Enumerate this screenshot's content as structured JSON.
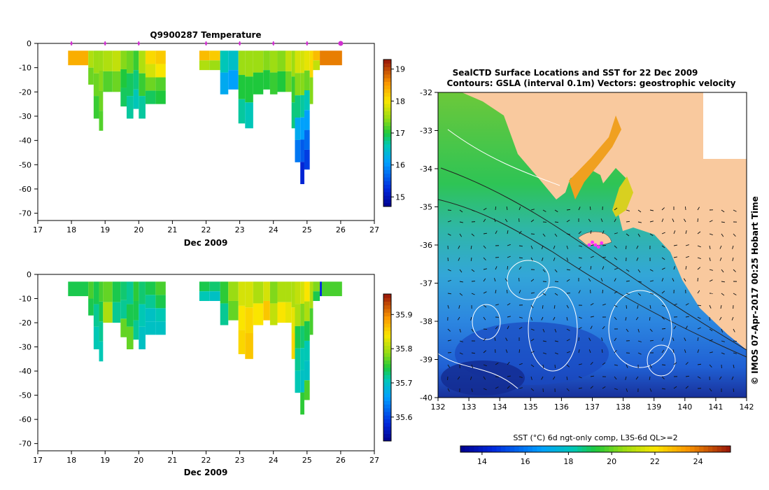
{
  "chart_data": [
    {
      "type": "heatmap",
      "title": "Q9900287  Temperature",
      "xlabel": "Dec 2009",
      "ylabel": "",
      "xlim": [
        17,
        27
      ],
      "ylim": [
        -73,
        0
      ],
      "x_ticks": [
        "17",
        "18",
        "19",
        "20",
        "21",
        "22",
        "23",
        "24",
        "25",
        "26",
        "27"
      ],
      "y_ticks": [
        "0",
        "-10",
        "-20",
        "-30",
        "-40",
        "-50",
        "-60",
        "-70"
      ],
      "y_tick_values": [
        0,
        -10,
        -20,
        -30,
        -40,
        -50,
        -60,
        -70
      ],
      "markers_x": [
        18,
        19,
        20,
        22,
        23,
        24,
        25,
        26
      ],
      "colorbar": {
        "min": 14.7,
        "max": 19.3,
        "ticks": [
          15,
          16,
          17,
          18,
          19
        ],
        "tick_labels": [
          "15",
          "16",
          "17",
          "18",
          "19"
        ]
      },
      "profiles": [
        {
          "x": 17.9,
          "w": 0.6,
          "depth": 9,
          "values": [
            18.4
          ]
        },
        {
          "x": 18.5,
          "w": 0.16,
          "depth": 17,
          "values": [
            17.6,
            17.3
          ]
        },
        {
          "x": 18.66,
          "w": 0.16,
          "depth": 31,
          "values": [
            17.5,
            17.3,
            17.1
          ]
        },
        {
          "x": 18.82,
          "w": 0.12,
          "depth": 36,
          "values": [
            17.5,
            17.4,
            17.3,
            17.2
          ]
        },
        {
          "x": 18.94,
          "w": 0.28,
          "depth": 20,
          "values": [
            17.6,
            17.2
          ]
        },
        {
          "x": 19.22,
          "w": 0.24,
          "depth": 20,
          "values": [
            17.7,
            17.3
          ]
        },
        {
          "x": 19.46,
          "w": 0.18,
          "depth": 26,
          "values": [
            17.4,
            17.0,
            16.9
          ]
        },
        {
          "x": 19.64,
          "w": 0.2,
          "depth": 31,
          "values": [
            17.3,
            16.9,
            16.7
          ]
        },
        {
          "x": 19.84,
          "w": 0.16,
          "depth": 27,
          "values": [
            17.1,
            16.8,
            16.6
          ]
        },
        {
          "x": 20.0,
          "w": 0.2,
          "depth": 31,
          "values": [
            17.6,
            17.1,
            16.7
          ]
        },
        {
          "x": 20.2,
          "w": 0.3,
          "depth": 25,
          "values": [
            18.1,
            17.8,
            17.3,
            16.9
          ]
        },
        {
          "x": 20.5,
          "w": 0.3,
          "depth": 25,
          "values": [
            18.2,
            18.0,
            17.2,
            17.0
          ]
        },
        {
          "x": 21.8,
          "w": 0.3,
          "depth": 11,
          "values": [
            18.3,
            17.6
          ]
        },
        {
          "x": 22.1,
          "w": 0.32,
          "depth": 11,
          "values": [
            18.2,
            17.5
          ]
        },
        {
          "x": 22.42,
          "w": 0.24,
          "depth": 21,
          "values": [
            16.6,
            16.2
          ]
        },
        {
          "x": 22.66,
          "w": 0.3,
          "depth": 19,
          "values": [
            16.5,
            16.1
          ]
        },
        {
          "x": 22.96,
          "w": 0.2,
          "depth": 33,
          "values": [
            17.5,
            17.0,
            16.7
          ]
        },
        {
          "x": 23.16,
          "w": 0.24,
          "depth": 35,
          "values": [
            17.5,
            17.0,
            16.6
          ]
        },
        {
          "x": 23.4,
          "w": 0.3,
          "depth": 21,
          "values": [
            17.5,
            17.0
          ]
        },
        {
          "x": 23.7,
          "w": 0.2,
          "depth": 19,
          "values": [
            17.4,
            17.0
          ]
        },
        {
          "x": 23.9,
          "w": 0.22,
          "depth": 21,
          "values": [
            17.5,
            17.1
          ]
        },
        {
          "x": 24.12,
          "w": 0.24,
          "depth": 20,
          "values": [
            17.4,
            17.0
          ]
        },
        {
          "x": 24.36,
          "w": 0.18,
          "depth": 20,
          "values": [
            17.7,
            17.3
          ]
        },
        {
          "x": 24.54,
          "w": 0.1,
          "depth": 35,
          "values": [
            17.5,
            17.1,
            16.8
          ]
        },
        {
          "x": 24.64,
          "w": 0.16,
          "depth": 49,
          "values": [
            17.8,
            17.4,
            16.8,
            16.2,
            15.8
          ]
        },
        {
          "x": 24.8,
          "w": 0.12,
          "depth": 58,
          "values": [
            17.8,
            17.4,
            16.7,
            16.1,
            15.6,
            15.2
          ]
        },
        {
          "x": 24.92,
          "w": 0.16,
          "depth": 52,
          "values": [
            17.9,
            17.3,
            16.6,
            16.1,
            15.7,
            15.4
          ]
        },
        {
          "x": 25.08,
          "w": 0.1,
          "depth": 25,
          "values": [
            18.1,
            17.4
          ]
        },
        {
          "x": 25.18,
          "w": 0.2,
          "depth": 11,
          "values": [
            18.3,
            17.7
          ]
        },
        {
          "x": 25.38,
          "w": 0.66,
          "depth": 9,
          "values": [
            18.7
          ]
        }
      ]
    },
    {
      "type": "heatmap",
      "title": "",
      "xlabel": "Dec 2009",
      "ylabel": "",
      "xlim": [
        17,
        27
      ],
      "ylim": [
        -73,
        0
      ],
      "x_ticks": [
        "17",
        "18",
        "19",
        "20",
        "21",
        "22",
        "23",
        "24",
        "25",
        "26",
        "27"
      ],
      "y_ticks": [
        "0",
        "-10",
        "-20",
        "-30",
        "-40",
        "-50",
        "-60",
        "-70"
      ],
      "y_tick_values": [
        0,
        -10,
        -20,
        -30,
        -40,
        -50,
        -60,
        -70
      ],
      "colorbar": {
        "min": 35.53,
        "max": 35.96,
        "ticks": [
          35.6,
          35.7,
          35.8,
          35.9
        ],
        "tick_labels": [
          "35.6",
          "35.7",
          "35.8",
          "35.9"
        ]
      },
      "profiles": [
        {
          "x": 17.9,
          "w": 0.6,
          "depth": 9,
          "values": [
            35.74
          ]
        },
        {
          "x": 18.5,
          "w": 0.16,
          "depth": 17,
          "values": [
            35.76,
            35.74
          ]
        },
        {
          "x": 18.66,
          "w": 0.16,
          "depth": 31,
          "values": [
            35.74,
            35.72,
            35.71
          ]
        },
        {
          "x": 18.82,
          "w": 0.12,
          "depth": 36,
          "values": [
            35.76,
            35.74,
            35.72,
            35.71
          ]
        },
        {
          "x": 18.94,
          "w": 0.28,
          "depth": 20,
          "values": [
            35.77,
            35.8
          ]
        },
        {
          "x": 19.22,
          "w": 0.24,
          "depth": 20,
          "values": [
            35.74,
            35.72
          ]
        },
        {
          "x": 19.46,
          "w": 0.18,
          "depth": 26,
          "values": [
            35.73,
            35.72,
            35.77
          ]
        },
        {
          "x": 19.64,
          "w": 0.2,
          "depth": 31,
          "values": [
            35.72,
            35.74,
            35.77
          ]
        },
        {
          "x": 19.84,
          "w": 0.16,
          "depth": 27,
          "values": [
            35.75,
            35.74,
            35.72
          ]
        },
        {
          "x": 20.0,
          "w": 0.2,
          "depth": 31,
          "values": [
            35.73,
            35.71,
            35.7
          ]
        },
        {
          "x": 20.2,
          "w": 0.3,
          "depth": 25,
          "values": [
            35.74,
            35.72,
            35.7,
            35.7
          ]
        },
        {
          "x": 20.5,
          "w": 0.3,
          "depth": 25,
          "values": [
            35.76,
            35.74,
            35.71,
            35.7
          ]
        },
        {
          "x": 21.8,
          "w": 0.3,
          "depth": 11,
          "values": [
            35.74,
            35.71
          ]
        },
        {
          "x": 22.1,
          "w": 0.32,
          "depth": 11,
          "values": [
            35.73,
            35.7
          ]
        },
        {
          "x": 22.42,
          "w": 0.24,
          "depth": 21,
          "values": [
            35.75,
            35.72
          ]
        },
        {
          "x": 22.66,
          "w": 0.3,
          "depth": 19,
          "values": [
            35.79,
            35.77
          ]
        },
        {
          "x": 22.96,
          "w": 0.2,
          "depth": 33,
          "values": [
            35.82,
            35.84,
            35.85
          ]
        },
        {
          "x": 23.16,
          "w": 0.24,
          "depth": 35,
          "values": [
            35.82,
            35.85,
            35.86
          ]
        },
        {
          "x": 23.4,
          "w": 0.3,
          "depth": 21,
          "values": [
            35.8,
            35.84
          ]
        },
        {
          "x": 23.7,
          "w": 0.2,
          "depth": 19,
          "values": [
            35.82,
            35.86
          ]
        },
        {
          "x": 23.9,
          "w": 0.22,
          "depth": 21,
          "values": [
            35.78,
            35.81
          ]
        },
        {
          "x": 24.12,
          "w": 0.24,
          "depth": 20,
          "values": [
            35.8,
            35.84
          ]
        },
        {
          "x": 24.36,
          "w": 0.18,
          "depth": 20,
          "values": [
            35.8,
            35.83
          ]
        },
        {
          "x": 24.54,
          "w": 0.1,
          "depth": 35,
          "values": [
            35.8,
            35.83,
            35.85
          ]
        },
        {
          "x": 24.64,
          "w": 0.16,
          "depth": 49,
          "values": [
            35.81,
            35.8,
            35.74,
            35.72,
            35.71
          ]
        },
        {
          "x": 24.8,
          "w": 0.12,
          "depth": 58,
          "values": [
            35.82,
            35.78,
            35.73,
            35.71,
            35.7,
            35.75
          ]
        },
        {
          "x": 24.92,
          "w": 0.16,
          "depth": 52,
          "values": [
            35.84,
            35.8,
            35.74,
            35.71,
            35.7,
            35.76
          ]
        },
        {
          "x": 25.08,
          "w": 0.1,
          "depth": 25,
          "values": [
            35.8,
            35.76
          ]
        },
        {
          "x": 25.18,
          "w": 0.2,
          "depth": 11,
          "values": [
            35.78,
            35.74
          ]
        },
        {
          "x": 25.38,
          "w": 0.06,
          "depth": 9,
          "values": [
            35.58
          ]
        },
        {
          "x": 25.44,
          "w": 0.6,
          "depth": 9,
          "values": [
            35.76
          ]
        }
      ]
    },
    {
      "type": "heatmap",
      "title": "SealCTD Surface Locations and SST for 22 Dec 2009",
      "subtitle": "Contours: GSLA (interval 0.1m) Vectors: geostrophic velocity",
      "xlabel": "",
      "ylabel": "",
      "xlim": [
        132,
        142
      ],
      "ylim": [
        -40,
        -32
      ],
      "x_ticks": [
        "132",
        "133",
        "134",
        "135",
        "136",
        "137",
        "138",
        "139",
        "140",
        "141",
        "142"
      ],
      "y_ticks": [
        "-32",
        "-33",
        "-34",
        "-35",
        "-36",
        "-37",
        "-38",
        "-39",
        "-40"
      ],
      "y_tick_values": [
        -32,
        -33,
        -34,
        -35,
        -36,
        -37,
        -38,
        -39,
        -40
      ],
      "side_label": "© IMOS 07-Apr-2017 00:25 Hobart Time",
      "colorbar": {
        "label": "SST (°C) 6d ngt-only comp, L3S-6d QL>=2",
        "min": 13,
        "max": 25.5,
        "ticks": [
          14,
          16,
          18,
          20,
          22,
          24
        ],
        "tick_labels": [
          "14",
          "16",
          "18",
          "20",
          "22",
          "24"
        ]
      },
      "seal_locations": [
        [
          136.9,
          -36.0
        ],
        [
          137.1,
          -36.0
        ],
        [
          137.3,
          -35.95
        ],
        [
          137.0,
          -35.93
        ],
        [
          137.2,
          -36.05
        ]
      ]
    }
  ]
}
